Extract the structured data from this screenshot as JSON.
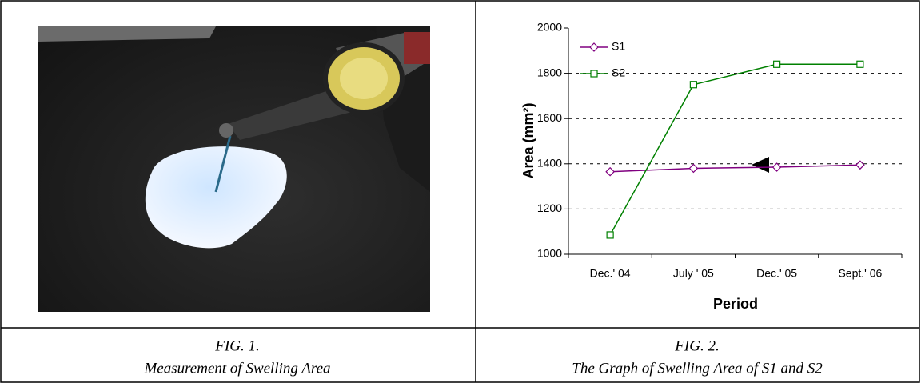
{
  "figures": [
    {
      "label": "FIG. 1.",
      "caption": "Measurement of Swelling Area"
    },
    {
      "label": "FIG. 2.",
      "caption": "The Graph of Swelling Area of S1 and S2"
    }
  ],
  "chart_data": {
    "type": "line",
    "xlabel": "Period",
    "ylabel": "Area (mm²)",
    "categories": [
      "Dec.' 04",
      "July ' 05",
      "Dec.' 05",
      "Sept.' 06"
    ],
    "series": [
      {
        "name": "S1",
        "color": "#800080",
        "marker": "diamond",
        "values": [
          1365,
          1380,
          1385,
          1395
        ]
      },
      {
        "name": "S2",
        "color": "#008000",
        "marker": "square",
        "values": [
          1085,
          1750,
          1840,
          1840
        ]
      }
    ],
    "ylim": [
      1000,
      2000
    ],
    "yticks": [
      1000,
      1200,
      1400,
      1600,
      1800,
      2000
    ],
    "grid": true,
    "legend": "top-left"
  }
}
